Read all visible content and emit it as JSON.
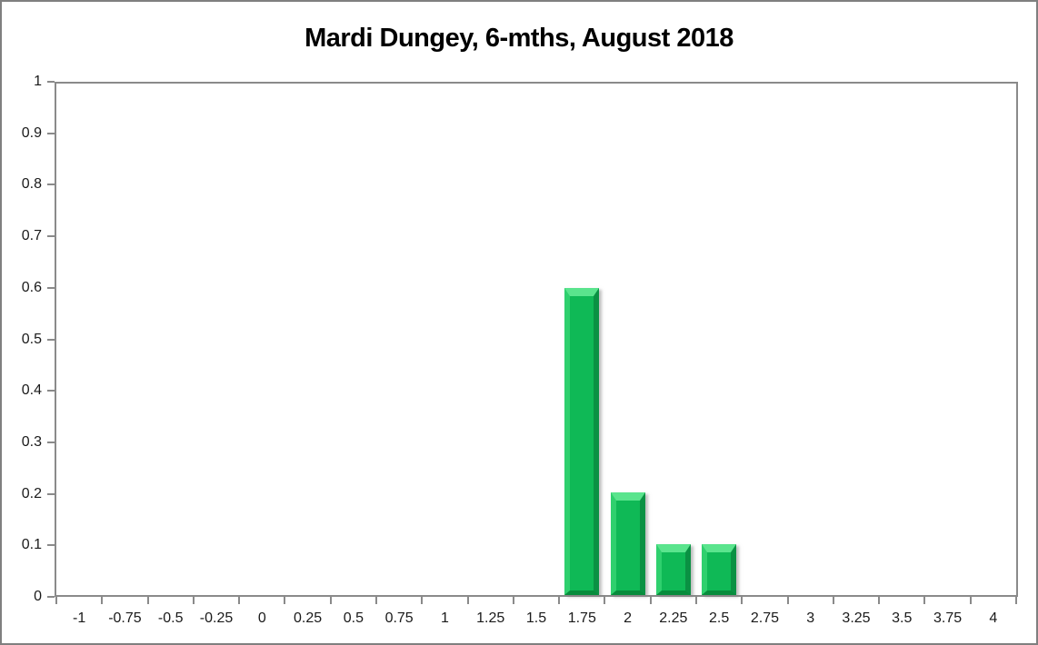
{
  "title": "Mardi Dungey, 6-mths, August 2018",
  "chart_data": {
    "type": "bar",
    "title": "Mardi Dungey, 6-mths, August 2018",
    "categories": [
      "-1",
      "-0.75",
      "-0.5",
      "-0.25",
      "0",
      "0.25",
      "0.5",
      "0.75",
      "1",
      "1.25",
      "1.5",
      "1.75",
      "2",
      "2.25",
      "2.5",
      "2.75",
      "3",
      "3.25",
      "3.5",
      "3.75",
      "4"
    ],
    "values": [
      0,
      0,
      0,
      0,
      0,
      0,
      0,
      0,
      0,
      0,
      0,
      0.6,
      0.2,
      0.1,
      0.1,
      0,
      0,
      0,
      0,
      0,
      0
    ],
    "xlabel": "",
    "ylabel": "",
    "ylim": [
      0,
      1
    ],
    "y_tick_labels": [
      "0",
      "0.1",
      "0.2",
      "0.3",
      "0.4",
      "0.5",
      "0.6",
      "0.7",
      "0.8",
      "0.9",
      "1"
    ],
    "grid": false,
    "legend": false,
    "tick_placement": "between-categories",
    "bar_color": "#0fb956",
    "bar_bevel_light": "#5ae48d",
    "bar_bevel_dark": "#078c3c",
    "axis_color": "#8a8a8a",
    "text_color": "#1a1a1a",
    "background_color": "#ffffff"
  }
}
